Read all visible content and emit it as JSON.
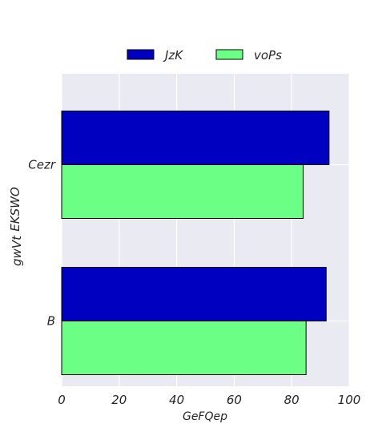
{
  "chart_data": {
    "type": "bar",
    "orientation": "horizontal",
    "categories": [
      "Cezr",
      "B"
    ],
    "series": [
      {
        "name": "JzK",
        "values": [
          93,
          92
        ],
        "color": "#0000c0"
      },
      {
        "name": "voPs",
        "values": [
          84,
          85
        ],
        "color": "#6cff86"
      }
    ],
    "xlabel": "GeFQep",
    "ylabel_lines": [
      "gwVt",
      "EKSWO"
    ],
    "xlim": [
      0,
      100
    ],
    "xticks": [
      0,
      20,
      40,
      60,
      80,
      100
    ],
    "grid": true,
    "legend_position": "top-center",
    "colors": {
      "plot_background": "#eaeaf2",
      "grid": "#ffffff",
      "bar_edge": "#000000"
    }
  }
}
